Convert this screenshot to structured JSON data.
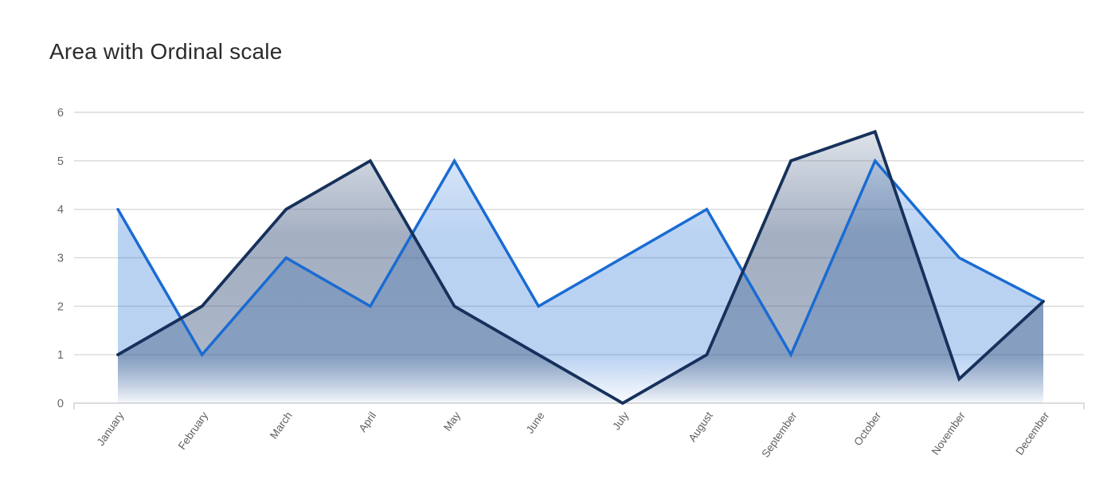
{
  "title": "Area with Ordinal scale",
  "colors": {
    "background": "#ffffff",
    "grid_line": "#d9d9d9",
    "axis_line": "#d0d0d0",
    "y_label": "#666666",
    "x_label": "#5f5f5f",
    "title_text": "#2b2b2b"
  },
  "chart_data": {
    "type": "area",
    "title": "Area with Ordinal scale",
    "categories": [
      "January",
      "February",
      "March",
      "April",
      "May",
      "June",
      "July",
      "August",
      "September",
      "October",
      "November",
      "December"
    ],
    "series": [
      {
        "id": "blue",
        "line_color": "#1a6bd3",
        "fill_color": "#1a6bd4",
        "values": [
          4,
          1,
          3,
          2,
          5,
          2,
          3,
          4,
          1,
          5,
          3,
          2.1
        ]
      },
      {
        "id": "navy",
        "line_color": "#16315b",
        "fill_color": "#4f668a",
        "values": [
          1,
          2,
          4,
          5,
          2,
          1,
          0,
          1,
          5,
          5.6,
          0.5,
          2.1
        ]
      }
    ],
    "yticks": [
      0,
      1,
      2,
      3,
      4,
      5,
      6
    ],
    "ylim": [
      0,
      6
    ],
    "grid": true,
    "legend": "none",
    "x_label_rotation_deg": -55
  }
}
